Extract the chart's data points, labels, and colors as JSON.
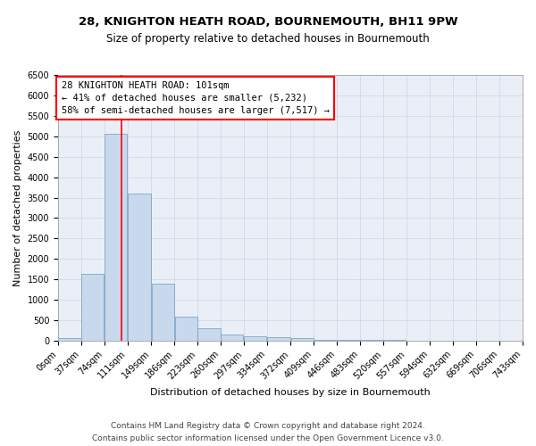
{
  "title_line1": "28, KNIGHTON HEATH ROAD, BOURNEMOUTH, BH11 9PW",
  "title_line2": "Size of property relative to detached houses in Bournemouth",
  "xlabel": "Distribution of detached houses by size in Bournemouth",
  "ylabel": "Number of detached properties",
  "bar_color": "#c9d9ed",
  "bar_edge_color": "#6a9bbf",
  "grid_color": "#d0d8e8",
  "background_color": "#eaeff7",
  "bin_edges": [
    0,
    37,
    74,
    111,
    149,
    186,
    223,
    260,
    297,
    334,
    372,
    409,
    446,
    483,
    520,
    557,
    594,
    632,
    669,
    706,
    743
  ],
  "bin_labels": [
    "0sqm",
    "37sqm",
    "74sqm",
    "111sqm",
    "149sqm",
    "186sqm",
    "223sqm",
    "260sqm",
    "297sqm",
    "334sqm",
    "372sqm",
    "409sqm",
    "446sqm",
    "483sqm",
    "520sqm",
    "557sqm",
    "594sqm",
    "632sqm",
    "669sqm",
    "706sqm",
    "743sqm"
  ],
  "bar_heights": [
    60,
    1630,
    5060,
    3590,
    1390,
    590,
    295,
    150,
    110,
    85,
    55,
    30,
    25,
    15,
    10,
    8,
    5,
    3,
    3,
    3,
    55
  ],
  "vline_x": 101,
  "annotation_text": "28 KNIGHTON HEATH ROAD: 101sqm\n← 41% of detached houses are smaller (5,232)\n58% of semi-detached houses are larger (7,517) →",
  "annotation_box_color": "white",
  "annotation_box_edge": "red",
  "vline_color": "red",
  "ylim": [
    0,
    6500
  ],
  "yticks": [
    0,
    500,
    1000,
    1500,
    2000,
    2500,
    3000,
    3500,
    4000,
    4500,
    5000,
    5500,
    6000,
    6500
  ],
  "footer_line1": "Contains HM Land Registry data © Crown copyright and database right 2024.",
  "footer_line2": "Contains public sector information licensed under the Open Government Licence v3.0.",
  "title_fontsize": 9.5,
  "subtitle_fontsize": 8.5,
  "axis_label_fontsize": 8,
  "tick_fontsize": 7,
  "annotation_fontsize": 7.5,
  "footer_fontsize": 6.5
}
